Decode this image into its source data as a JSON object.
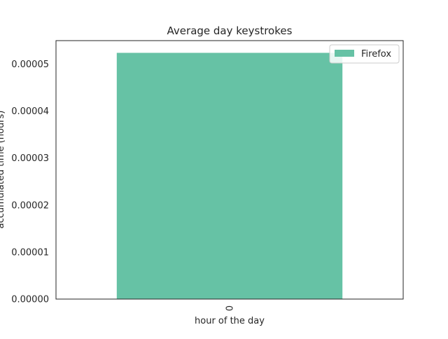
{
  "chart_data": {
    "type": "bar",
    "title": "Average day keystrokes",
    "xlabel": "hour of the day",
    "ylabel": "accumulated time (hours)",
    "categories": [
      "0"
    ],
    "series": [
      {
        "name": "Firefox",
        "values": [
          5.24e-05
        ],
        "color": "#66c2a5"
      }
    ],
    "ylim": [
      0,
      5.5e-05
    ],
    "yticks": [
      0,
      1e-05,
      2e-05,
      3e-05,
      4e-05,
      5e-05
    ],
    "ytick_labels": [
      "0.00000",
      "0.00001",
      "0.00002",
      "0.00003",
      "0.00004",
      "0.00005"
    ],
    "xtick_rotation_deg": 90,
    "grid": false,
    "legend": "top-right"
  }
}
